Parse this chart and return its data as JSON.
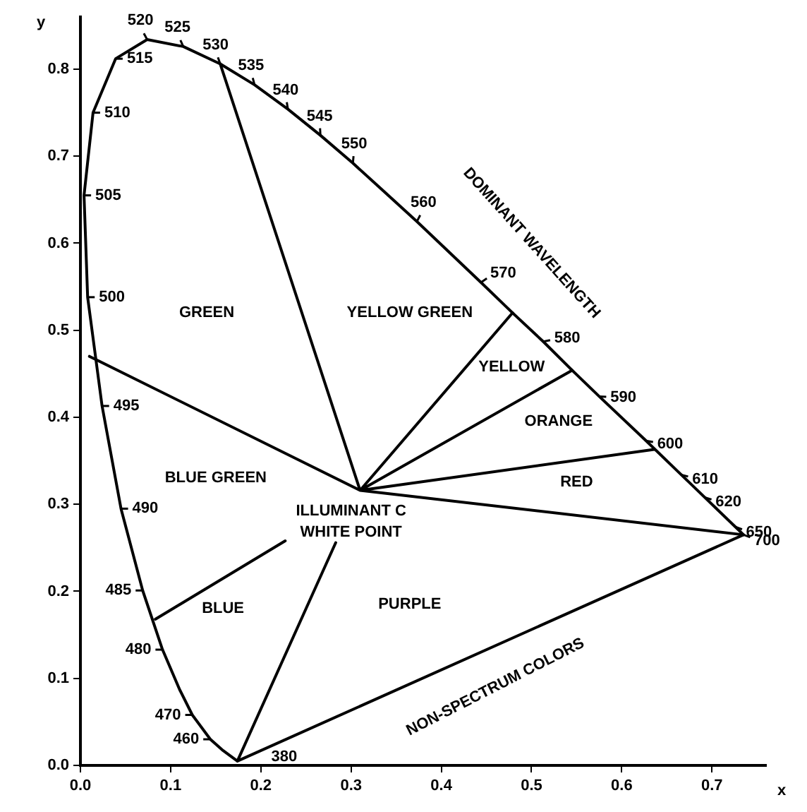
{
  "chart_data": {
    "type": "line",
    "xlabel": "x",
    "ylabel": "y",
    "xlim": [
      0,
      0.76
    ],
    "ylim": [
      0,
      0.86
    ],
    "xticks": [
      {
        "value": 0,
        "label": "0.0"
      },
      0.1,
      0.2,
      0.3,
      0.4,
      0.5,
      0.6,
      0.7
    ],
    "yticks": [
      {
        "value": 0,
        "label": "0.0"
      },
      0.1,
      0.2,
      0.3,
      0.4,
      0.5,
      0.6,
      0.7,
      0.8
    ],
    "grid": false,
    "legend": false,
    "marker": "none",
    "line_style": "solid",
    "series": [
      {
        "color": "#000000",
        "x": [
          0.283,
          0.174,
          0.157,
          0.144,
          0.124,
          0.11,
          0.091,
          0.069,
          0.045,
          0.024,
          0.008,
          0.004,
          0.014,
          0.039,
          0.074,
          0.114,
          0.155,
          0.193,
          0.23,
          0.266,
          0.302,
          0.337,
          0.373,
          0.444,
          0.479,
          0.513,
          0.545,
          0.575,
          0.627,
          0.666,
          0.692,
          0.726,
          0.735,
          0.174
        ],
        "values": [
          0.256,
          0.005,
          0.018,
          0.03,
          0.058,
          0.087,
          0.133,
          0.201,
          0.295,
          0.413,
          0.538,
          0.655,
          0.75,
          0.812,
          0.834,
          0.826,
          0.806,
          0.782,
          0.754,
          0.724,
          0.692,
          0.659,
          0.625,
          0.555,
          0.52,
          0.487,
          0.454,
          0.424,
          0.373,
          0.334,
          0.308,
          0.274,
          0.265,
          0.005
        ]
      },
      {
        "color": "#000000",
        "x": [
          0.01,
          0.31,
          0.155,
          0.31,
          0.479,
          0.31,
          0.545,
          0.31,
          0.636,
          0.31,
          0.735
        ],
        "values": [
          0.47,
          0.316,
          0.806,
          0.316,
          0.52,
          0.316,
          0.454,
          0.316,
          0.363,
          0.316,
          0.265
        ]
      },
      {
        "color": "#000000",
        "x": [
          0.083,
          0.227
        ],
        "values": [
          0.168,
          0.258
        ]
      }
    ],
    "annotations": [
      "DOMINANT WAVELENGTH",
      "NON-SPECTRUM COLORS",
      "GREEN",
      "YELLOW GREEN",
      "YELLOW",
      "ORANGE",
      "RED",
      "BLUE GREEN",
      "ILLUMINANT C",
      "WHITE POINT",
      "BLUE",
      "PURPLE",
      {
        "text": "380",
        "x": 0.174,
        "y": 0.005
      },
      {
        "text": "460",
        "x": 0.144,
        "y": 0.03
      },
      {
        "text": "470",
        "x": 0.124,
        "y": 0.058
      },
      {
        "text": "480",
        "x": 0.091,
        "y": 0.133
      },
      {
        "text": "485",
        "x": 0.069,
        "y": 0.201
      },
      {
        "text": "490",
        "x": 0.045,
        "y": 0.295
      },
      {
        "text": "495",
        "x": 0.024,
        "y": 0.413
      },
      {
        "text": "500",
        "x": 0.008,
        "y": 0.538
      },
      {
        "text": "505",
        "x": 0.004,
        "y": 0.655
      },
      {
        "text": "510",
        "x": 0.014,
        "y": 0.75
      },
      {
        "text": "515",
        "x": 0.039,
        "y": 0.812
      },
      {
        "text": "520",
        "x": 0.074,
        "y": 0.834
      },
      {
        "text": "525",
        "x": 0.114,
        "y": 0.826
      },
      {
        "text": "530",
        "x": 0.155,
        "y": 0.806
      },
      {
        "text": "535",
        "x": 0.193,
        "y": 0.782
      },
      {
        "text": "540",
        "x": 0.23,
        "y": 0.754
      },
      {
        "text": "545",
        "x": 0.266,
        "y": 0.724
      },
      {
        "text": "550",
        "x": 0.302,
        "y": 0.692
      },
      {
        "text": "560",
        "x": 0.373,
        "y": 0.625
      },
      {
        "text": "570",
        "x": 0.444,
        "y": 0.555
      },
      {
        "text": "580",
        "x": 0.513,
        "y": 0.487
      },
      {
        "text": "590",
        "x": 0.575,
        "y": 0.424
      },
      {
        "text": "600",
        "x": 0.627,
        "y": 0.373
      },
      {
        "text": "610",
        "x": 0.666,
        "y": 0.334
      },
      {
        "text": "620",
        "x": 0.692,
        "y": 0.308
      },
      {
        "text": "650",
        "x": 0.726,
        "y": 0.274
      },
      {
        "text": "700",
        "x": 0.735,
        "y": 0.265
      }
    ]
  }
}
